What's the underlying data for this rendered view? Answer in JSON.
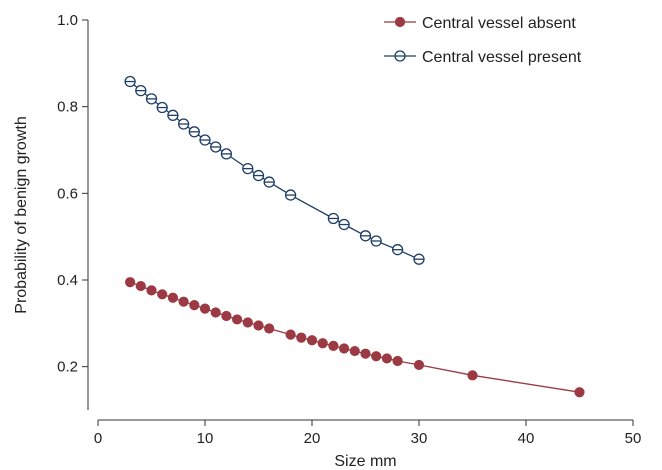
{
  "chart_data": {
    "type": "line",
    "title": "",
    "xlabel": "Size mm",
    "ylabel": "Probability of benign growth",
    "xlim": [
      0,
      50
    ],
    "ylim": [
      0.1,
      1.0
    ],
    "xticks": [
      0,
      10,
      20,
      30,
      40,
      50
    ],
    "yticks": [
      0.2,
      0.4,
      0.6,
      0.8,
      1.0
    ],
    "xtick_labels": [
      "0",
      "10",
      "20",
      "30",
      "40",
      "50"
    ],
    "ytick_labels": [
      "0.2",
      "0.4",
      "0.6",
      "0.8",
      "1.0"
    ],
    "grid": false,
    "legend_position": "top-right",
    "series": [
      {
        "name": "Central vessel absent",
        "marker": "filled-circle",
        "color": "#9b3a42",
        "x": [
          3,
          4,
          5,
          6,
          7,
          8,
          9,
          10,
          11,
          12,
          13,
          14,
          15,
          16,
          18,
          19,
          20,
          21,
          22,
          23,
          24,
          25,
          26,
          27,
          28,
          30,
          35,
          45
        ],
        "y": [
          0.395,
          0.386,
          0.376,
          0.367,
          0.359,
          0.35,
          0.342,
          0.334,
          0.325,
          0.317,
          0.309,
          0.302,
          0.295,
          0.288,
          0.274,
          0.267,
          0.261,
          0.254,
          0.248,
          0.242,
          0.236,
          0.23,
          0.224,
          0.219,
          0.213,
          0.204,
          0.18,
          0.141
        ]
      },
      {
        "name": "Central vessel present",
        "marker": "open-circle-crossbar",
        "color": "#1f3e66",
        "x": [
          3,
          4,
          5,
          6,
          7,
          8,
          9,
          10,
          11,
          12,
          14,
          15,
          16,
          18,
          22,
          23,
          25,
          26,
          28,
          30
        ],
        "y": [
          0.858,
          0.837,
          0.818,
          0.798,
          0.78,
          0.76,
          0.742,
          0.723,
          0.707,
          0.691,
          0.657,
          0.641,
          0.626,
          0.596,
          0.542,
          0.528,
          0.502,
          0.49,
          0.47,
          0.448
        ]
      }
    ]
  }
}
